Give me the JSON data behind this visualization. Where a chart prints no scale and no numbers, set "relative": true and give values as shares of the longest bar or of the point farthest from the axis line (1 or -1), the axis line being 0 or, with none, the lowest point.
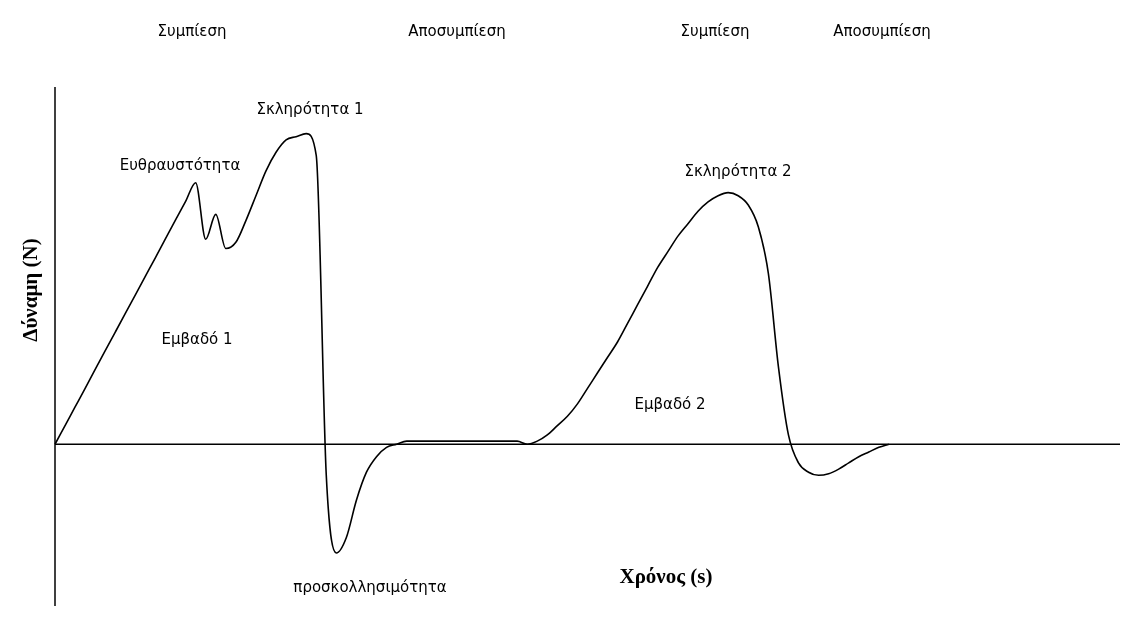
{
  "chart_data": {
    "type": "line",
    "relative": true,
    "xlabel": "Χρόνος (s)",
    "ylabel": "Δύναμη (N)",
    "annotations": [
      "Συμπίεση",
      "Αποσυμπίεση",
      "Συμπίεση",
      "Αποσυμπίεση",
      "Ευθραυστότητα",
      "Σκληρότητα 1",
      "Σκληρότητα 2",
      "Εμβαδό 1",
      "Εμβαδό 2",
      "προσκολλησιμότητα"
    ],
    "categories": [
      null,
      null,
      null,
      null,
      null,
      null,
      null,
      null,
      null,
      null,
      null,
      null,
      null,
      null,
      null,
      null,
      null,
      null,
      null,
      null,
      null,
      null,
      null,
      null,
      null,
      null,
      null,
      null,
      null,
      null,
      null,
      null,
      null,
      null,
      null,
      null,
      null,
      null,
      null,
      null,
      null,
      null,
      null,
      null,
      null,
      null,
      null,
      null,
      null,
      null,
      null,
      null,
      null,
      null,
      null,
      null,
      null,
      null,
      null,
      null,
      null,
      null,
      null,
      null,
      null,
      null,
      null,
      null,
      null,
      null,
      null,
      null,
      null,
      null,
      null,
      null,
      null,
      null,
      null,
      null,
      null,
      null,
      null,
      null,
      null,
      null,
      null,
      null,
      null,
      null,
      null,
      null,
      null,
      null,
      null,
      null,
      null,
      null,
      null,
      null,
      null,
      null,
      null,
      null,
      null,
      null,
      null
    ],
    "series": [
      {
        "color": "#000000",
        "values": [
          0,
          0.06,
          0.12,
          0.18,
          0.241,
          0.301,
          0.361,
          0.421,
          0.481,
          0.541,
          0.601,
          0.662,
          0.722,
          0.782,
          0.842,
          0.66,
          0.74,
          0.63,
          0.65,
          0.72,
          0.8,
          0.88,
          0.94,
          0.98,
          0.99,
          1.0,
          0.93,
          -0.1,
          -0.35,
          -0.3,
          -0.18,
          -0.09,
          -0.04,
          -0.01,
          0,
          0.01,
          0.01,
          0.01,
          0.01,
          0.01,
          0.01,
          0.01,
          0.01,
          0.01,
          0.01,
          0.01,
          0.01,
          0,
          0.01,
          0.03,
          0.06,
          0.09,
          0.13,
          0.18,
          0.23,
          0.28,
          0.33,
          0.39,
          0.45,
          0.51,
          0.57,
          0.62,
          0.67,
          0.71,
          0.75,
          0.78,
          0.8,
          0.81,
          0.8,
          0.77,
          0.7,
          0.55,
          0.25,
          0.03,
          -0.06,
          -0.09,
          -0.1,
          -0.095,
          -0.08,
          -0.06,
          -0.04,
          -0.025,
          -0.01,
          0,
          null,
          null,
          null,
          null,
          null,
          null,
          null,
          null,
          null,
          null,
          null,
          null,
          null,
          null,
          null,
          null,
          null,
          null,
          null,
          null,
          null,
          null,
          null
        ]
      }
    ]
  }
}
